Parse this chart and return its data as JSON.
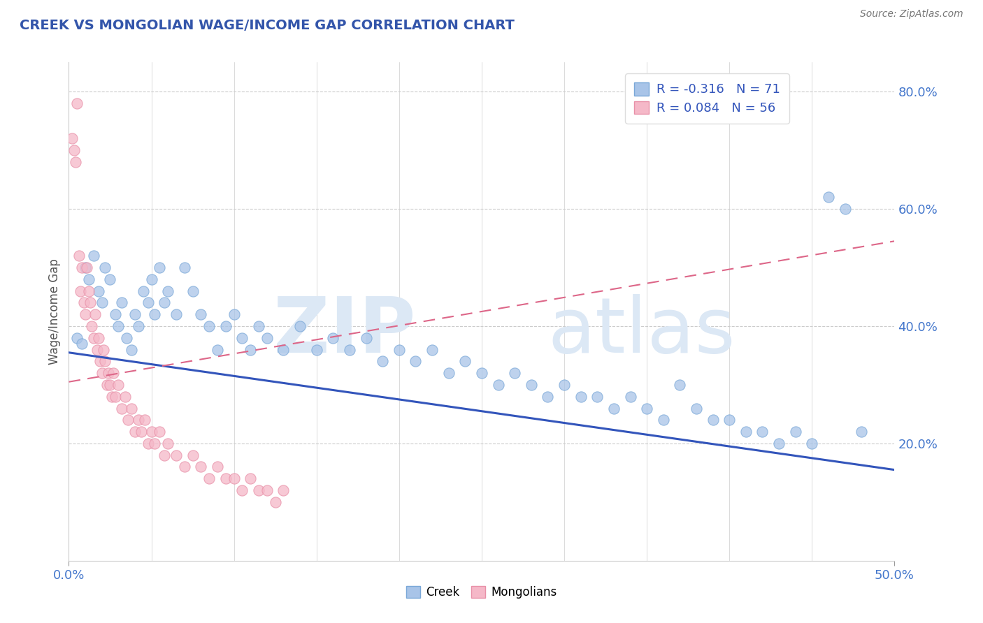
{
  "title": "CREEK VS MONGOLIAN WAGE/INCOME GAP CORRELATION CHART",
  "source": "Source: ZipAtlas.com",
  "ylabel": "Wage/Income Gap",
  "xlim": [
    0.0,
    0.5
  ],
  "ylim": [
    0.0,
    0.85
  ],
  "ytick_values": [
    0.2,
    0.4,
    0.6,
    0.8
  ],
  "ytick_labels": [
    "20.0%",
    "40.0%",
    "60.0%",
    "80.0%"
  ],
  "xtick_values": [
    0.0,
    0.5
  ],
  "xtick_labels": [
    "0.0%",
    "50.0%"
  ],
  "creek_color": "#a8c4e8",
  "creek_edge_color": "#7aa8d8",
  "mongolian_color": "#f5b8c8",
  "mongolian_edge_color": "#e890a8",
  "creek_line_color": "#3355bb",
  "mongolian_line_color": "#dd6688",
  "creek_R": -0.316,
  "creek_N": 71,
  "mongolian_R": 0.084,
  "mongolian_N": 56,
  "legend_label_creek": "Creek",
  "legend_label_mongolian": "Mongolians",
  "creek_trend": [
    0.355,
    0.155
  ],
  "mongolian_trend": [
    0.305,
    0.545
  ],
  "watermark_zip": "ZIP",
  "watermark_atlas": "atlas",
  "creek_points_x": [
    0.005,
    0.008,
    0.01,
    0.012,
    0.015,
    0.018,
    0.02,
    0.022,
    0.025,
    0.028,
    0.03,
    0.032,
    0.035,
    0.038,
    0.04,
    0.042,
    0.045,
    0.048,
    0.05,
    0.052,
    0.055,
    0.058,
    0.06,
    0.065,
    0.07,
    0.075,
    0.08,
    0.085,
    0.09,
    0.095,
    0.1,
    0.105,
    0.11,
    0.115,
    0.12,
    0.13,
    0.14,
    0.15,
    0.16,
    0.17,
    0.18,
    0.19,
    0.2,
    0.21,
    0.22,
    0.23,
    0.24,
    0.25,
    0.26,
    0.27,
    0.28,
    0.29,
    0.3,
    0.31,
    0.32,
    0.33,
    0.34,
    0.35,
    0.36,
    0.37,
    0.38,
    0.39,
    0.4,
    0.41,
    0.42,
    0.43,
    0.44,
    0.45,
    0.46,
    0.47,
    0.48
  ],
  "creek_points_y": [
    0.38,
    0.37,
    0.5,
    0.48,
    0.52,
    0.46,
    0.44,
    0.5,
    0.48,
    0.42,
    0.4,
    0.44,
    0.38,
    0.36,
    0.42,
    0.4,
    0.46,
    0.44,
    0.48,
    0.42,
    0.5,
    0.44,
    0.46,
    0.42,
    0.5,
    0.46,
    0.42,
    0.4,
    0.36,
    0.4,
    0.42,
    0.38,
    0.36,
    0.4,
    0.38,
    0.36,
    0.4,
    0.36,
    0.38,
    0.36,
    0.38,
    0.34,
    0.36,
    0.34,
    0.36,
    0.32,
    0.34,
    0.32,
    0.3,
    0.32,
    0.3,
    0.28,
    0.3,
    0.28,
    0.28,
    0.26,
    0.28,
    0.26,
    0.24,
    0.3,
    0.26,
    0.24,
    0.24,
    0.22,
    0.22,
    0.2,
    0.22,
    0.2,
    0.62,
    0.6,
    0.22
  ],
  "mongolian_points_x": [
    0.002,
    0.003,
    0.004,
    0.005,
    0.006,
    0.007,
    0.008,
    0.009,
    0.01,
    0.011,
    0.012,
    0.013,
    0.014,
    0.015,
    0.016,
    0.017,
    0.018,
    0.019,
    0.02,
    0.021,
    0.022,
    0.023,
    0.024,
    0.025,
    0.026,
    0.027,
    0.028,
    0.03,
    0.032,
    0.034,
    0.036,
    0.038,
    0.04,
    0.042,
    0.044,
    0.046,
    0.048,
    0.05,
    0.052,
    0.055,
    0.058,
    0.06,
    0.065,
    0.07,
    0.075,
    0.08,
    0.085,
    0.09,
    0.095,
    0.1,
    0.105,
    0.11,
    0.115,
    0.12,
    0.125,
    0.13
  ],
  "mongolian_points_y": [
    0.72,
    0.7,
    0.68,
    0.78,
    0.52,
    0.46,
    0.5,
    0.44,
    0.42,
    0.5,
    0.46,
    0.44,
    0.4,
    0.38,
    0.42,
    0.36,
    0.38,
    0.34,
    0.32,
    0.36,
    0.34,
    0.3,
    0.32,
    0.3,
    0.28,
    0.32,
    0.28,
    0.3,
    0.26,
    0.28,
    0.24,
    0.26,
    0.22,
    0.24,
    0.22,
    0.24,
    0.2,
    0.22,
    0.2,
    0.22,
    0.18,
    0.2,
    0.18,
    0.16,
    0.18,
    0.16,
    0.14,
    0.16,
    0.14,
    0.14,
    0.12,
    0.14,
    0.12,
    0.12,
    0.1,
    0.12
  ]
}
